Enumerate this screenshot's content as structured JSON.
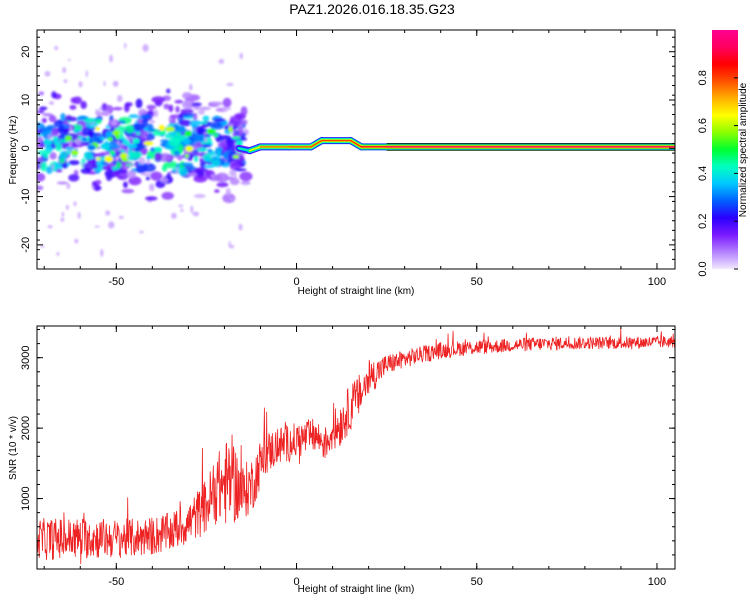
{
  "title": "PAZ1.2026.016.18.35.G23",
  "chart_data": [
    {
      "type": "heatmap",
      "xlabel": "Height of straight line (km)",
      "ylabel": "Frequency (Hz)",
      "xlim": [
        -72,
        105
      ],
      "ylim": [
        -25,
        24.5
      ],
      "xticks": [
        -50,
        0,
        50,
        100
      ],
      "yticks": [
        -20,
        -10,
        0,
        10,
        20
      ],
      "xtick_labels": [
        "-50",
        "0",
        "50",
        "100"
      ],
      "ytick_labels": [
        "-20",
        "-10",
        "0",
        "10",
        "20"
      ],
      "colorbar": {
        "label": "Normalized spectral amplitude",
        "range": [
          0.0,
          1.0
        ],
        "ticks": [
          0.0,
          0.2,
          0.4,
          0.6,
          0.8
        ],
        "tick_labels": [
          "0.0",
          "0.2",
          "0.4",
          "0.6",
          "0.8"
        ],
        "colors": [
          "#f2e8ff",
          "#b380ff",
          "#7a1aff",
          "#2a00ff",
          "#0060ff",
          "#00c8ff",
          "#00ffc0",
          "#00ff30",
          "#8cff00",
          "#ffff00",
          "#ffb000",
          "#ff5000",
          "#ff0000",
          "#ff0060",
          "#ff0090"
        ]
      },
      "noise_region": {
        "x_range": [
          -72,
          -14
        ],
        "freq_center": 1.0,
        "freq_spread": 5.0,
        "typical_amplitude": 0.35
      },
      "ridge": [
        {
          "x": -16,
          "f": 0.0,
          "amp": 0.35
        },
        {
          "x": -13,
          "f": -0.5,
          "amp": 0.55
        },
        {
          "x": -10,
          "f": 0.3,
          "amp": 0.75
        },
        {
          "x": -2,
          "f": 0.3,
          "amp": 0.75
        },
        {
          "x": 4,
          "f": 0.3,
          "amp": 0.8
        },
        {
          "x": 7,
          "f": 1.6,
          "amp": 0.8
        },
        {
          "x": 15,
          "f": 1.6,
          "amp": 0.8
        },
        {
          "x": 18,
          "f": 0.3,
          "amp": 0.85
        },
        {
          "x": 25,
          "f": 0.3,
          "amp": 0.92
        },
        {
          "x": 105,
          "f": 0.3,
          "amp": 0.95
        }
      ]
    },
    {
      "type": "line",
      "xlabel": "Height of straight line (km)",
      "ylabel": "SNR (10 * v/v)",
      "xlim": [
        -72,
        105
      ],
      "ylim": [
        0,
        3450
      ],
      "xticks": [
        -50,
        0,
        50,
        100
      ],
      "yticks": [
        1000,
        2000,
        3000
      ],
      "xtick_labels": [
        "-50",
        "0",
        "50",
        "100"
      ],
      "ytick_labels": [
        "1000",
        "2000",
        "3000"
      ],
      "color": "#ee2222",
      "series": [
        {
          "name": "SNR",
          "x": [
            -72,
            -65,
            -58,
            -50,
            -45,
            -40,
            -35,
            -30,
            -25,
            -22,
            -20,
            -18,
            -15,
            -12,
            -10,
            -8,
            -5,
            0,
            5,
            8,
            10,
            12,
            15,
            18,
            20,
            25,
            30,
            35,
            40,
            45,
            50,
            55,
            60,
            70,
            80,
            90,
            100,
            105
          ],
          "y": [
            420,
            430,
            440,
            430,
            440,
            470,
            520,
            650,
            900,
            1150,
            1200,
            1280,
            1060,
            1230,
            1500,
            1650,
            1750,
            1820,
            1900,
            1780,
            1950,
            2050,
            2300,
            2500,
            2700,
            2900,
            2980,
            3050,
            3100,
            3130,
            3150,
            3160,
            3180,
            3200,
            3210,
            3210,
            3220,
            3230
          ],
          "noise_amplitude": [
            300,
            300,
            300,
            280,
            280,
            280,
            280,
            300,
            400,
            500,
            600,
            650,
            420,
            380,
            350,
            300,
            280,
            260,
            250,
            250,
            280,
            330,
            330,
            300,
            260,
            150,
            130,
            120,
            120,
            110,
            110,
            100,
            100,
            100,
            90,
            90,
            90,
            90
          ]
        }
      ]
    }
  ]
}
